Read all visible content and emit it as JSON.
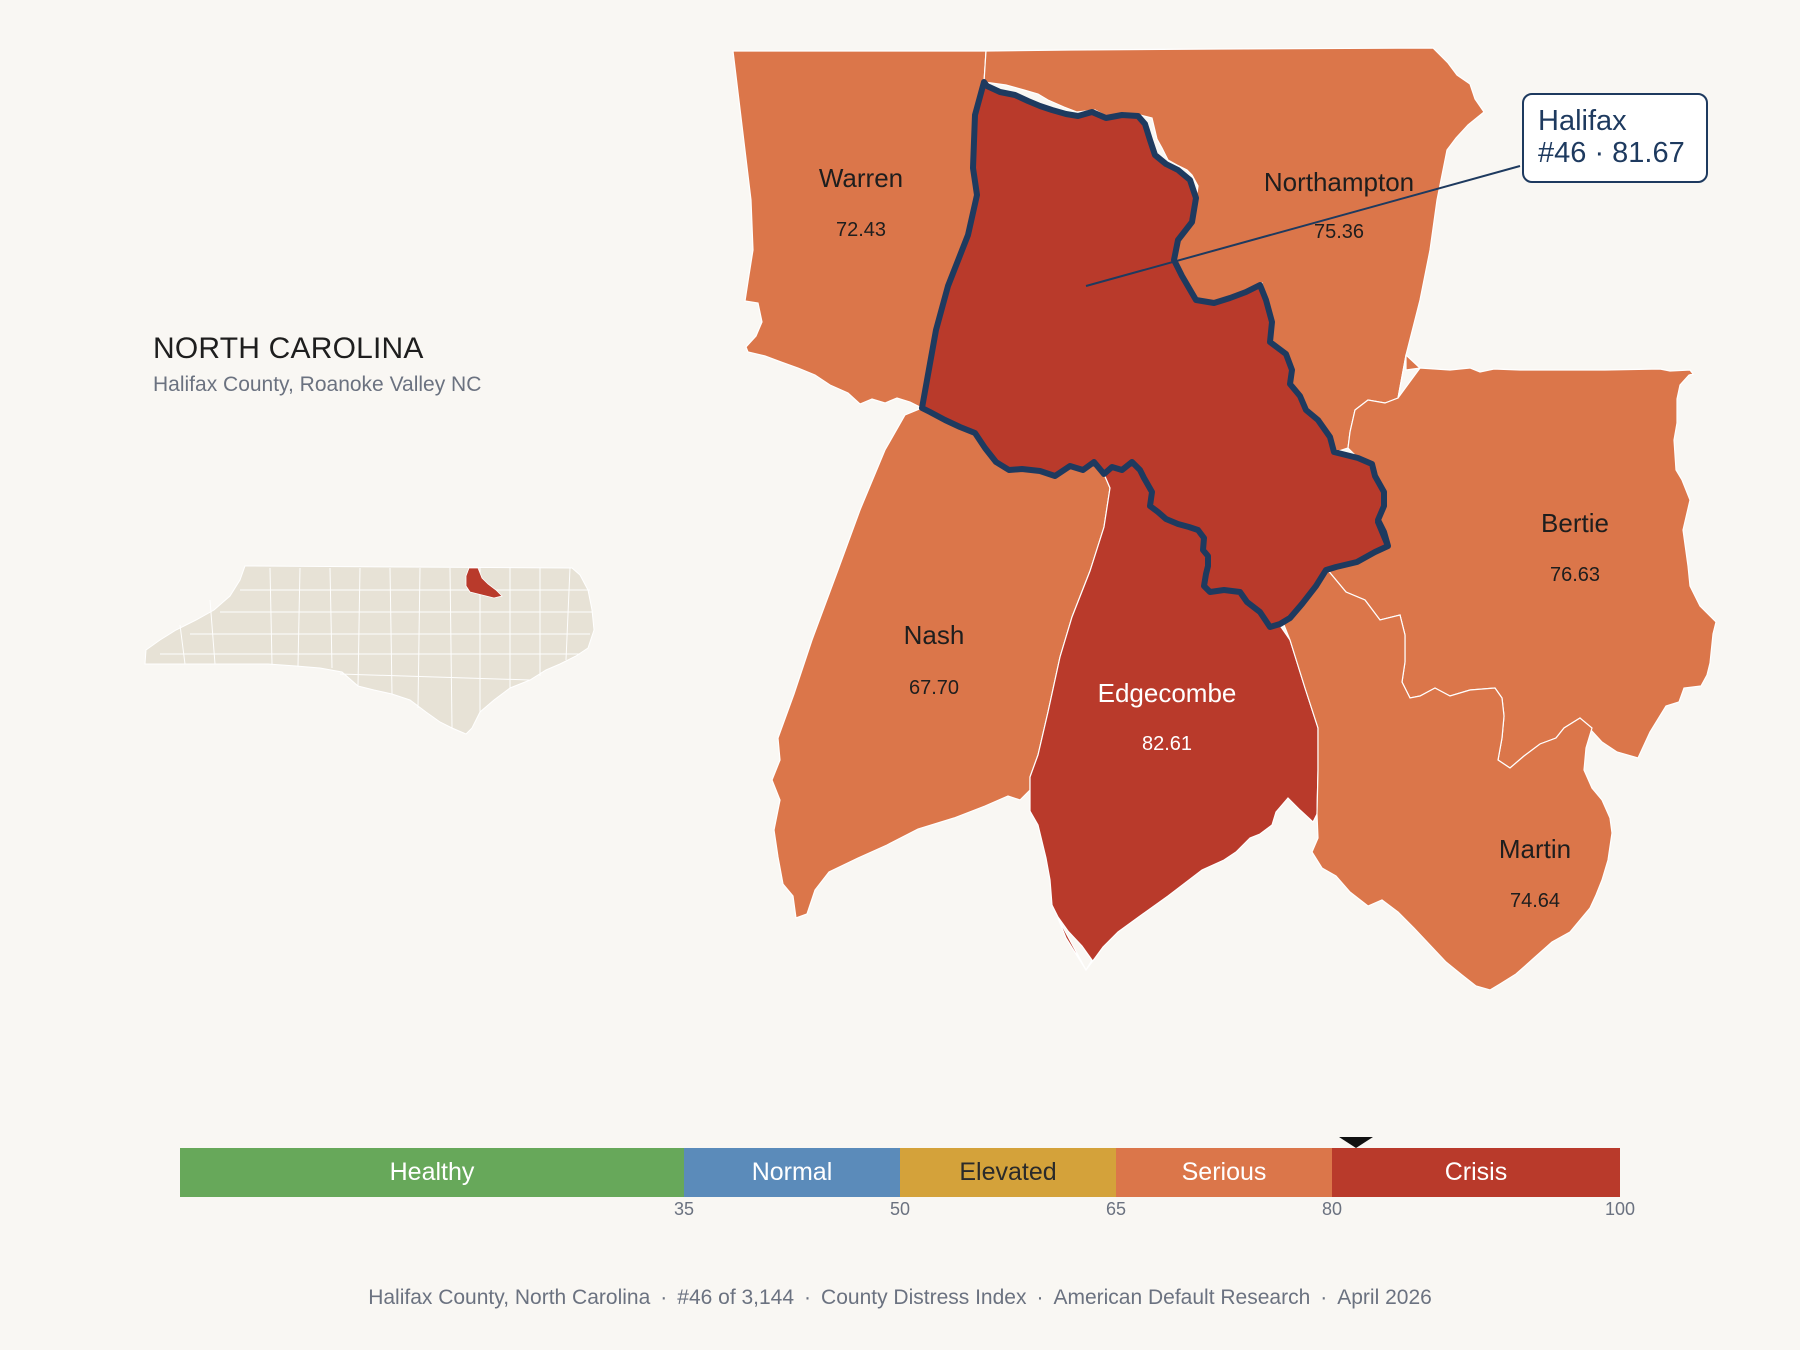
{
  "state": {
    "title": "NORTH CAROLINA",
    "subtitle": "Halifax County, Roanoke Valley NC"
  },
  "highlight": {
    "name": "Halifax",
    "detail": "#46 · 81.67",
    "rank": 46,
    "score": 81.67
  },
  "counties": [
    {
      "id": "warren",
      "name": "Warren",
      "value": "72.43",
      "fill": "#db764a"
    },
    {
      "id": "northampton",
      "name": "Northampton",
      "value": "75.36",
      "fill": "#db764a"
    },
    {
      "id": "bertie",
      "name": "Bertie",
      "value": "76.63",
      "fill": "#db764a"
    },
    {
      "id": "nash",
      "name": "Nash",
      "value": "67.70",
      "fill": "#db764a"
    },
    {
      "id": "edgecombe",
      "name": "Edgecombe",
      "value": "82.61",
      "fill": "#b93a2b"
    },
    {
      "id": "martin",
      "name": "Martin",
      "value": "74.64",
      "fill": "#db764a"
    }
  ],
  "colors": {
    "crisis": "#b93a2b",
    "serious": "#db764a",
    "elevated": "#d4a23a",
    "normal": "#5b8bba",
    "healthy": "#67a85a",
    "outline": "#1e3a5f",
    "inset_land": "#e7e2d6",
    "background": "#f9f7f3"
  },
  "legend": {
    "segments": [
      {
        "label": "Healthy",
        "from": 0,
        "to": 35,
        "color": "#67a85a",
        "text_color": "#ffffff"
      },
      {
        "label": "Normal",
        "from": 35,
        "to": 50,
        "color": "#5b8bba",
        "text_color": "#ffffff"
      },
      {
        "label": "Elevated",
        "from": 50,
        "to": 65,
        "color": "#d4a23a",
        "text_color": "#2a2a2a"
      },
      {
        "label": "Serious",
        "from": 65,
        "to": 80,
        "color": "#db764a",
        "text_color": "#ffffff"
      },
      {
        "label": "Crisis",
        "from": 80,
        "to": 100,
        "color": "#b93a2b",
        "text_color": "#ffffff"
      }
    ],
    "ticks": [
      "35",
      "50",
      "65",
      "80",
      "100"
    ],
    "marker_value": 81.67
  },
  "footer": {
    "items": [
      "Halifax County, North Carolina",
      "#46 of 3,144",
      "County Distress Index",
      "American Default Research",
      "April 2026"
    ],
    "separator": "·"
  }
}
